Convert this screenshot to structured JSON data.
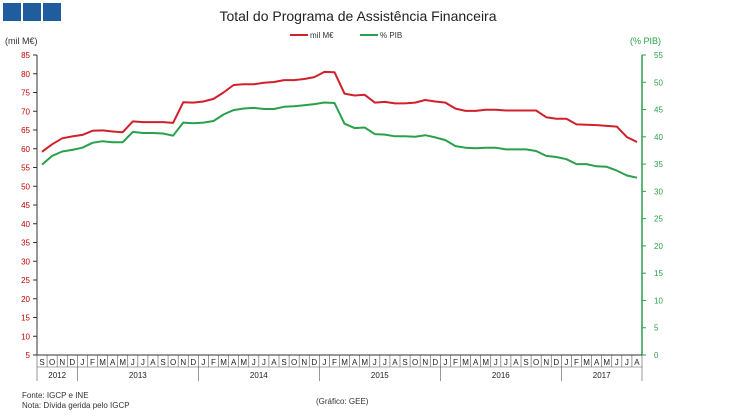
{
  "logo": {
    "blocks": 3,
    "color": "#1f5d9e"
  },
  "chart_data": {
    "type": "line",
    "title": "Total do Programa de Assistência Financeira",
    "ylabel_left": "(mil M€)",
    "ylabel_right": "(% PIB)",
    "left_ylim": [
      5,
      85
    ],
    "left_ticks": [
      5,
      10,
      15,
      20,
      25,
      30,
      35,
      40,
      45,
      50,
      55,
      60,
      65,
      70,
      75,
      80,
      85
    ],
    "right_ylim": [
      0,
      55
    ],
    "right_ticks": [
      0,
      5,
      10,
      15,
      20,
      25,
      30,
      35,
      40,
      45,
      50,
      55
    ],
    "right_axis_color": "#2aa04a",
    "month_labels": [
      "S",
      "O",
      "N",
      "D",
      "J",
      "F",
      "M",
      "A",
      "M",
      "J",
      "J",
      "A",
      "S",
      "O",
      "N",
      "D",
      "J",
      "F",
      "M",
      "A",
      "M",
      "J",
      "J",
      "A",
      "S",
      "O",
      "N",
      "D",
      "J",
      "F",
      "M",
      "A",
      "M",
      "J",
      "J",
      "A",
      "S",
      "O",
      "N",
      "D",
      "J",
      "F",
      "M",
      "A",
      "M",
      "J",
      "J",
      "A",
      "S",
      "O",
      "N",
      "D",
      "J",
      "F",
      "M",
      "A",
      "M",
      "J",
      "J",
      "A"
    ],
    "years": [
      {
        "label": "2012",
        "start": 0,
        "count": 4
      },
      {
        "label": "2013",
        "start": 4,
        "count": 12
      },
      {
        "label": "2014",
        "start": 16,
        "count": 12
      },
      {
        "label": "2015",
        "start": 28,
        "count": 12
      },
      {
        "label": "2016",
        "start": 40,
        "count": 12
      },
      {
        "label": "2017",
        "start": 52,
        "count": 8
      }
    ],
    "series": [
      {
        "name": "mil M€",
        "axis": "left",
        "color": "#d0202a",
        "values": [
          59.2,
          61.2,
          62.8,
          63.3,
          63.7,
          64.8,
          64.9,
          64.6,
          64.4,
          67.3,
          67.1,
          67.1,
          67.1,
          66.9,
          72.4,
          72.3,
          72.6,
          73.3,
          75.0,
          77.0,
          77.2,
          77.2,
          77.6,
          77.8,
          78.3,
          78.3,
          78.6,
          79.1,
          80.5,
          80.4,
          74.7,
          74.2,
          74.4,
          72.3,
          72.5,
          72.1,
          72.1,
          72.3,
          73.0,
          72.6,
          72.3,
          70.7,
          70.1,
          70.1,
          70.4,
          70.4,
          70.2,
          70.2,
          70.2,
          70.2,
          68.4,
          68.0,
          68.0,
          66.5,
          66.4,
          66.3,
          66.1,
          65.9,
          63.1,
          61.8
        ]
      },
      {
        "name": "% PIB",
        "axis": "right",
        "color": "#2aa04a",
        "values": [
          34.9,
          36.5,
          37.3,
          37.6,
          38.0,
          38.9,
          39.2,
          39.0,
          39.0,
          40.9,
          40.7,
          40.7,
          40.6,
          40.2,
          42.6,
          42.5,
          42.6,
          42.9,
          44.1,
          44.9,
          45.2,
          45.3,
          45.1,
          45.1,
          45.5,
          45.6,
          45.8,
          46.0,
          46.3,
          46.2,
          42.4,
          41.6,
          41.7,
          40.5,
          40.4,
          40.1,
          40.1,
          40.0,
          40.3,
          39.9,
          39.4,
          38.3,
          38.0,
          37.9,
          38.0,
          38.0,
          37.7,
          37.7,
          37.7,
          37.4,
          36.5,
          36.3,
          35.9,
          35.0,
          35.0,
          34.6,
          34.5,
          33.8,
          32.9,
          32.5
        ]
      }
    ],
    "notes": {
      "source": "Fonte: IGCP e INE",
      "note": "Nota: Dívida gerida pelo IGCP",
      "credit": "(Gráfico: GEE)"
    }
  }
}
